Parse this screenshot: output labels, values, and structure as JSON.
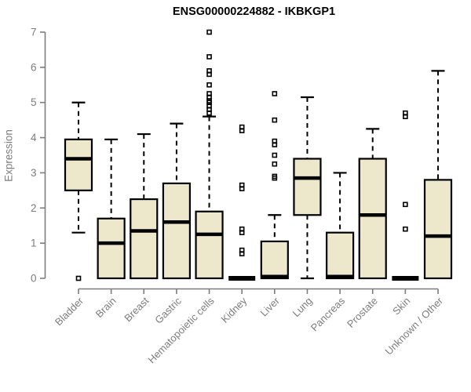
{
  "chart_data": {
    "type": "boxplot",
    "title": "ENSG00000224882 - IKBKGP1",
    "xlabel": "",
    "ylabel": "Expression",
    "ylim": [
      0,
      7
    ],
    "yticks": [
      0,
      1,
      2,
      3,
      4,
      5,
      6,
      7
    ],
    "grid": false,
    "legend": "none",
    "categories": [
      "Bladder",
      "Brain",
      "Breast",
      "Gastric",
      "Hematopoietic cells",
      "Kidney",
      "Liver",
      "Lung",
      "Pancreas",
      "Prostate",
      "Skin",
      "Unknown / Other"
    ],
    "boxes": [
      {
        "category": "Bladder",
        "whisker_low": 1.3,
        "q1": 2.5,
        "median": 3.4,
        "q3": 3.95,
        "whisker_high": 5.0,
        "outliers": [
          0
        ]
      },
      {
        "category": "Brain",
        "whisker_low": 0,
        "q1": 0,
        "median": 1.0,
        "q3": 1.7,
        "whisker_high": 3.95,
        "outliers": []
      },
      {
        "category": "Breast",
        "whisker_low": 0,
        "q1": 0,
        "median": 1.35,
        "q3": 2.25,
        "whisker_high": 4.1,
        "outliers": []
      },
      {
        "category": "Gastric",
        "whisker_low": 0,
        "q1": 0,
        "median": 1.6,
        "q3": 2.7,
        "whisker_high": 4.4,
        "outliers": []
      },
      {
        "category": "Hematopoietic cells",
        "whisker_low": 0,
        "q1": 0,
        "median": 1.25,
        "q3": 1.9,
        "whisker_high": 4.6,
        "outliers": [
          4.7,
          4.8,
          4.9,
          5.0,
          5.05,
          5.15,
          5.25,
          5.5,
          5.8,
          5.9,
          6.3,
          7.0
        ]
      },
      {
        "category": "Kidney",
        "whisker_low": 0,
        "q1": 0,
        "median": 0,
        "q3": 0,
        "whisker_high": 0,
        "outliers": [
          0.7,
          0.8,
          1.3,
          1.4,
          2.55,
          2.65,
          4.2,
          4.3
        ]
      },
      {
        "category": "Liver",
        "whisker_low": 0,
        "q1": 0,
        "median": 0.05,
        "q3": 1.05,
        "whisker_high": 1.8,
        "outliers": [
          2.85,
          2.9,
          3.25,
          3.5,
          3.8,
          3.9,
          4.5,
          5.25
        ]
      },
      {
        "category": "Lung",
        "whisker_low": 0,
        "q1": 1.8,
        "median": 2.85,
        "q3": 3.4,
        "whisker_high": 5.15,
        "outliers": []
      },
      {
        "category": "Pancreas",
        "whisker_low": 0,
        "q1": 0,
        "median": 0.05,
        "q3": 1.3,
        "whisker_high": 3.0,
        "outliers": []
      },
      {
        "category": "Prostate",
        "whisker_low": 0,
        "q1": 0,
        "median": 1.8,
        "q3": 3.4,
        "whisker_high": 4.25,
        "outliers": []
      },
      {
        "category": "Skin",
        "whisker_low": 0,
        "q1": 0,
        "median": 0,
        "q3": 0,
        "whisker_high": 0,
        "outliers": [
          1.4,
          2.1,
          4.6,
          4.7
        ]
      },
      {
        "category": "Unknown / Other",
        "whisker_low": 0,
        "q1": 0,
        "median": 1.2,
        "q3": 2.8,
        "whisker_high": 5.9,
        "outliers": []
      }
    ],
    "colors": {
      "box_fill": "#EDE7CB",
      "box_stroke": "#000000",
      "median": "#000000",
      "whisker": "#000000",
      "outlier": "#000000",
      "axis": "#7d7d7d",
      "tick_text": "#7d7d7d",
      "title_text": "#000000",
      "background": "#ffffff"
    }
  }
}
